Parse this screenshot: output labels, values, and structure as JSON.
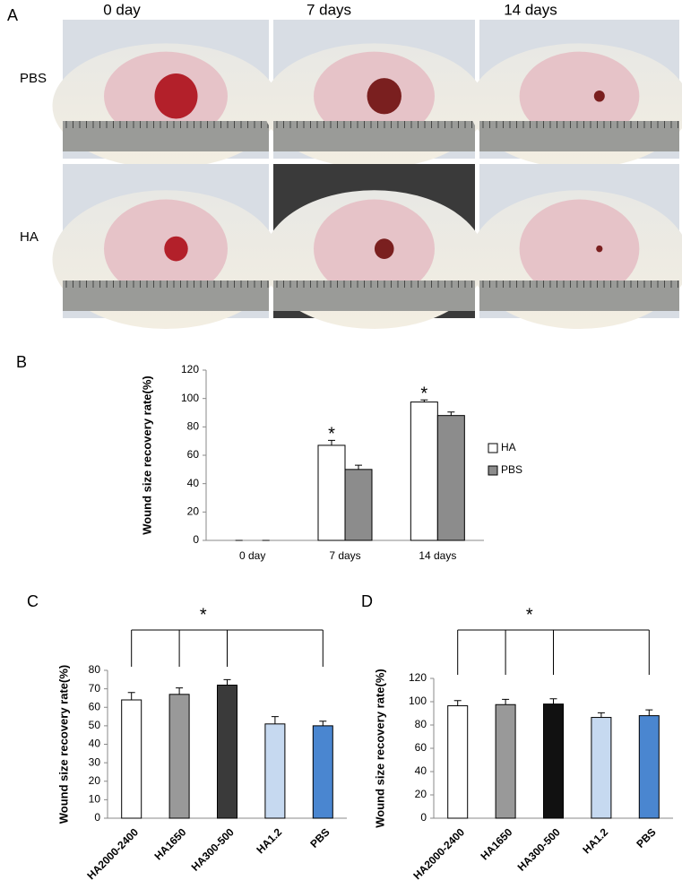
{
  "panel_a": {
    "label": "A",
    "columns": [
      "0 day",
      "7 days",
      "14 days"
    ],
    "rows": [
      "PBS",
      "HA"
    ]
  },
  "chart_data": [
    {
      "type": "bar",
      "panel": "B",
      "ylabel": "Wound size recovery rate(%)",
      "categories": [
        "0 day",
        "7 days",
        "14 days"
      ],
      "series": [
        {
          "name": "HA",
          "color": "#ffffff",
          "values": [
            0,
            67,
            97.5
          ],
          "errors": [
            0,
            3.5,
            1.5
          ]
        },
        {
          "name": "PBS",
          "color": "#8c8c8c",
          "values": [
            0,
            50,
            88
          ],
          "errors": [
            0,
            3,
            2.5
          ]
        }
      ],
      "significance": [
        null,
        "*",
        "*"
      ],
      "ylim": [
        0,
        120
      ],
      "yticks": [
        0,
        20,
        40,
        60,
        80,
        100,
        120
      ],
      "legend": "right"
    },
    {
      "type": "bar",
      "panel": "C",
      "ylabel": "Wound size recovery rate(%)",
      "categories": [
        "HA2000-2400",
        "HA1650",
        "HA300-500",
        "HA1.2",
        "PBS"
      ],
      "values": [
        64,
        67,
        72,
        51,
        50
      ],
      "errors": [
        4,
        3.5,
        3,
        4,
        2.5
      ],
      "colors": [
        "#ffffff",
        "#999999",
        "#3a3a3a",
        "#c6d9f0",
        "#4a86d0"
      ],
      "bracket_label": "*",
      "ylim": [
        0,
        80
      ],
      "yticks": [
        0,
        10,
        20,
        30,
        40,
        50,
        60,
        70,
        80
      ]
    },
    {
      "type": "bar",
      "panel": "D",
      "ylabel": "Wound size recovery rate(%)",
      "categories": [
        "HA2000-2400",
        "HA1650",
        "HA300-500",
        "HA1.2",
        "PBS"
      ],
      "values": [
        96.5,
        97.5,
        98,
        86.5,
        88
      ],
      "errors": [
        4.5,
        4.5,
        4.5,
        4,
        5
      ],
      "colors": [
        "#ffffff",
        "#999999",
        "#111111",
        "#c6d9f0",
        "#4a86d0"
      ],
      "bracket_label": "*",
      "ylim": [
        0,
        120
      ],
      "yticks": [
        0,
        20,
        40,
        60,
        80,
        100,
        120
      ]
    }
  ]
}
